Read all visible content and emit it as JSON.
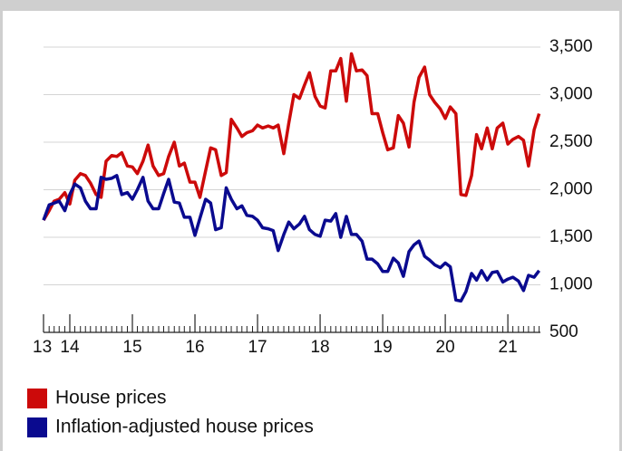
{
  "chart_data": {
    "type": "line",
    "x": [
      2013.58,
      2013.67,
      2013.75,
      2013.83,
      2013.92,
      2014.0,
      2014.08,
      2014.17,
      2014.25,
      2014.33,
      2014.42,
      2014.5,
      2014.58,
      2014.67,
      2014.75,
      2014.83,
      2014.92,
      2015.0,
      2015.08,
      2015.17,
      2015.25,
      2015.33,
      2015.42,
      2015.5,
      2015.58,
      2015.67,
      2015.75,
      2015.83,
      2015.92,
      2016.0,
      2016.08,
      2016.17,
      2016.25,
      2016.33,
      2016.42,
      2016.5,
      2016.58,
      2016.67,
      2016.75,
      2016.83,
      2016.92,
      2017.0,
      2017.08,
      2017.17,
      2017.25,
      2017.33,
      2017.42,
      2017.5,
      2017.58,
      2017.67,
      2017.75,
      2017.83,
      2017.92,
      2018.0,
      2018.08,
      2018.17,
      2018.25,
      2018.33,
      2018.42,
      2018.5,
      2018.58,
      2018.67,
      2018.75,
      2018.83,
      2018.92,
      2019.0,
      2019.08,
      2019.17,
      2019.25,
      2019.33,
      2019.42,
      2019.5,
      2019.58,
      2019.67,
      2019.75,
      2019.83,
      2019.92,
      2020.0,
      2020.08,
      2020.17,
      2020.25,
      2020.33,
      2020.42,
      2020.5,
      2020.58,
      2020.67,
      2020.75,
      2020.83,
      2020.92,
      2021.0,
      2021.08,
      2021.17,
      2021.25,
      2021.33,
      2021.42,
      2021.5
    ],
    "series": [
      {
        "name": "House prices",
        "color": "#cc0a0a",
        "values": [
          1680,
          1780,
          1880,
          1900,
          1970,
          1850,
          2100,
          2170,
          2150,
          2070,
          1950,
          1920,
          2300,
          2360,
          2350,
          2390,
          2250,
          2240,
          2170,
          2300,
          2470,
          2250,
          2150,
          2170,
          2350,
          2500,
          2250,
          2280,
          2080,
          2080,
          1920,
          2200,
          2440,
          2420,
          2150,
          2180,
          2740,
          2650,
          2560,
          2600,
          2620,
          2680,
          2650,
          2670,
          2650,
          2680,
          2380,
          2700,
          3000,
          2960,
          3100,
          3230,
          2980,
          2880,
          2860,
          3250,
          3250,
          3380,
          2930,
          3430,
          3250,
          3260,
          3200,
          2800,
          2800,
          2600,
          2420,
          2440,
          2780,
          2700,
          2450,
          2920,
          3180,
          3290,
          3000,
          2920,
          2850,
          2750,
          2870,
          2800,
          1950,
          1940,
          2150,
          2580,
          2430,
          2650,
          2430,
          2650,
          2700,
          2480,
          2530,
          2560,
          2520,
          2250,
          2630,
          2800
        ]
      },
      {
        "name": "Inflation-adjusted house prices",
        "color": "#0a0a8f",
        "values": [
          1680,
          1840,
          1860,
          1880,
          1780,
          1950,
          2060,
          2020,
          1880,
          1800,
          1800,
          2130,
          2110,
          2120,
          2150,
          1950,
          1970,
          1900,
          2000,
          2130,
          1880,
          1800,
          1800,
          1960,
          2110,
          1870,
          1860,
          1710,
          1710,
          1520,
          1700,
          1900,
          1860,
          1580,
          1600,
          2020,
          1900,
          1800,
          1830,
          1730,
          1720,
          1680,
          1600,
          1590,
          1570,
          1360,
          1530,
          1660,
          1590,
          1640,
          1720,
          1580,
          1530,
          1510,
          1680,
          1670,
          1750,
          1500,
          1720,
          1530,
          1530,
          1460,
          1270,
          1270,
          1220,
          1140,
          1140,
          1280,
          1230,
          1090,
          1350,
          1420,
          1460,
          1300,
          1260,
          1210,
          1180,
          1230,
          1190,
          840,
          830,
          930,
          1120,
          1050,
          1150,
          1050,
          1130,
          1140,
          1030,
          1060,
          1080,
          1040,
          940,
          1100,
          1080,
          1150
        ]
      }
    ],
    "xlim": [
      2013.58,
      2021.52
    ],
    "xticks": [
      {
        "value": 2013.58,
        "label": "13"
      },
      {
        "value": 2014,
        "label": "14"
      },
      {
        "value": 2015,
        "label": "15"
      },
      {
        "value": 2016,
        "label": "16"
      },
      {
        "value": 2017,
        "label": "17"
      },
      {
        "value": 2018,
        "label": "18"
      },
      {
        "value": 2019,
        "label": "19"
      },
      {
        "value": 2020,
        "label": "20"
      },
      {
        "value": 2021,
        "label": "21"
      }
    ],
    "ylim": [
      500,
      3500
    ],
    "yticks": [
      500,
      {
        "value": 1000,
        "label": "1,000"
      },
      {
        "value": 1500,
        "label": "1,500"
      },
      {
        "value": 2000,
        "label": "2,000"
      },
      {
        "value": 2500,
        "label": "2,500"
      },
      {
        "value": 3000,
        "label": "3,000"
      },
      {
        "value": 3500,
        "label": "3,500"
      }
    ],
    "grid": true,
    "legend": "bottom-left"
  }
}
